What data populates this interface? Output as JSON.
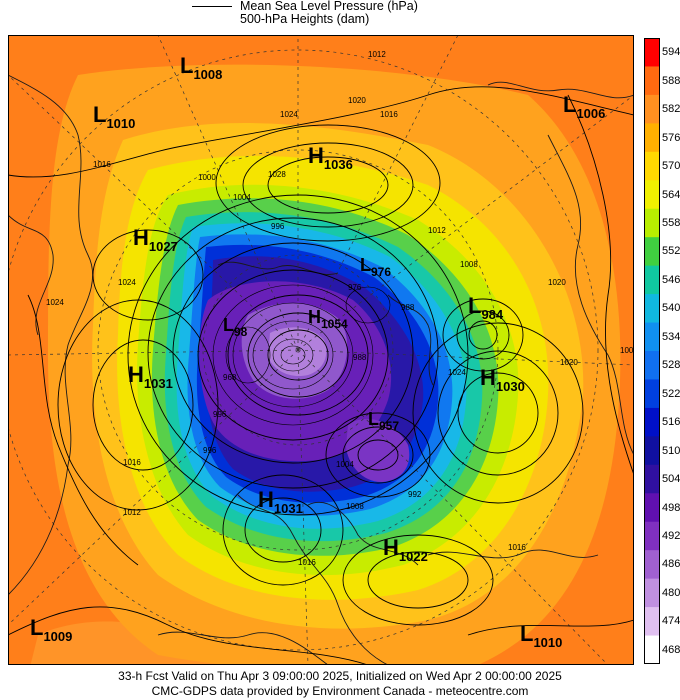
{
  "legend": {
    "pressure_label": "Mean Sea Level Pressure (hPa)",
    "heights_label": "500-hPa Heights (dam)"
  },
  "colorbar": {
    "levels": [
      "594",
      "588",
      "582",
      "576",
      "570",
      "564",
      "558",
      "552",
      "546",
      "540",
      "534",
      "528",
      "522",
      "516",
      "510",
      "504",
      "498",
      "492",
      "486",
      "480",
      "474",
      "468"
    ],
    "colors": [
      "#ff0000",
      "#ff6a10",
      "#ff9020",
      "#ffb000",
      "#ffd800",
      "#f0f000",
      "#b8ee00",
      "#40d040",
      "#10c8a0",
      "#10b8e0",
      "#1090f0",
      "#1070f0",
      "#0040e0",
      "#0010c8",
      "#1010a0",
      "#3010a0",
      "#6010b0",
      "#8030c0",
      "#a060d0",
      "#c090e0",
      "#e0c0f0",
      "#ffffff"
    ]
  },
  "centers": [
    {
      "type": "L",
      "value": "1008"
    },
    {
      "type": "L",
      "value": "1010"
    },
    {
      "type": "H",
      "value": "1036"
    },
    {
      "type": "L",
      "value": "1006"
    },
    {
      "type": "H",
      "value": "1027"
    },
    {
      "type": "L",
      "value": "976"
    },
    {
      "type": "L",
      "value": "984"
    },
    {
      "type": "L",
      "value": "98"
    },
    {
      "type": "H",
      "value": "1054"
    },
    {
      "type": "H",
      "value": "1031"
    },
    {
      "type": "H",
      "value": "1030"
    },
    {
      "type": "L",
      "value": "957"
    },
    {
      "type": "H",
      "value": "1031"
    },
    {
      "type": "H",
      "value": "1022"
    },
    {
      "type": "L",
      "value": "1009"
    },
    {
      "type": "L",
      "value": "1010"
    }
  ],
  "isobar_labels": [
    "1012",
    "1020",
    "1016",
    "1024",
    "1016",
    "1028",
    "1000",
    "1004",
    "996",
    "1012",
    "1008",
    "1024",
    "1024",
    "1020",
    "988",
    "976",
    "968",
    "988",
    "996",
    "1024",
    "1020",
    "1008",
    "1016",
    "996",
    "1012",
    "1004",
    "1016",
    "1008",
    "992",
    "1016"
  ],
  "footer": {
    "line1": "33-h Fcst Valid on Thu Apr  3 09:00:00 2025, Initialized on Wed Apr  2 00:00:00 2025",
    "line2": "CMC-GDPS data provided by Environment Canada - meteocentre.com"
  }
}
